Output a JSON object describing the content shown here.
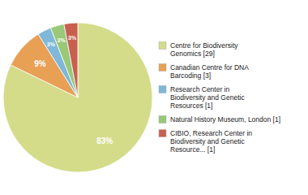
{
  "chart_data": {
    "type": "pie",
    "categories": [
      "Centre for Biodiversity\nGenomics [29]",
      "Canadian Centre for DNA\nBarcoding [3]",
      "Research Center in\nBiodiversity and Genetic\nResources [1]",
      "Natural History Museum, London [1]",
      "CIBIO, Research Center in\nBiodiversity and Genetic\nResource... [1]"
    ],
    "values": [
      83,
      9,
      3,
      3,
      3
    ],
    "value_labels": [
      "83%",
      "9%",
      "3%",
      "3%",
      "3%"
    ],
    "colors": [
      "#d4dc8a",
      "#e8a055",
      "#7fb8d8",
      "#98c878",
      "#c86050"
    ],
    "data_labels": true,
    "legend": "right"
  }
}
